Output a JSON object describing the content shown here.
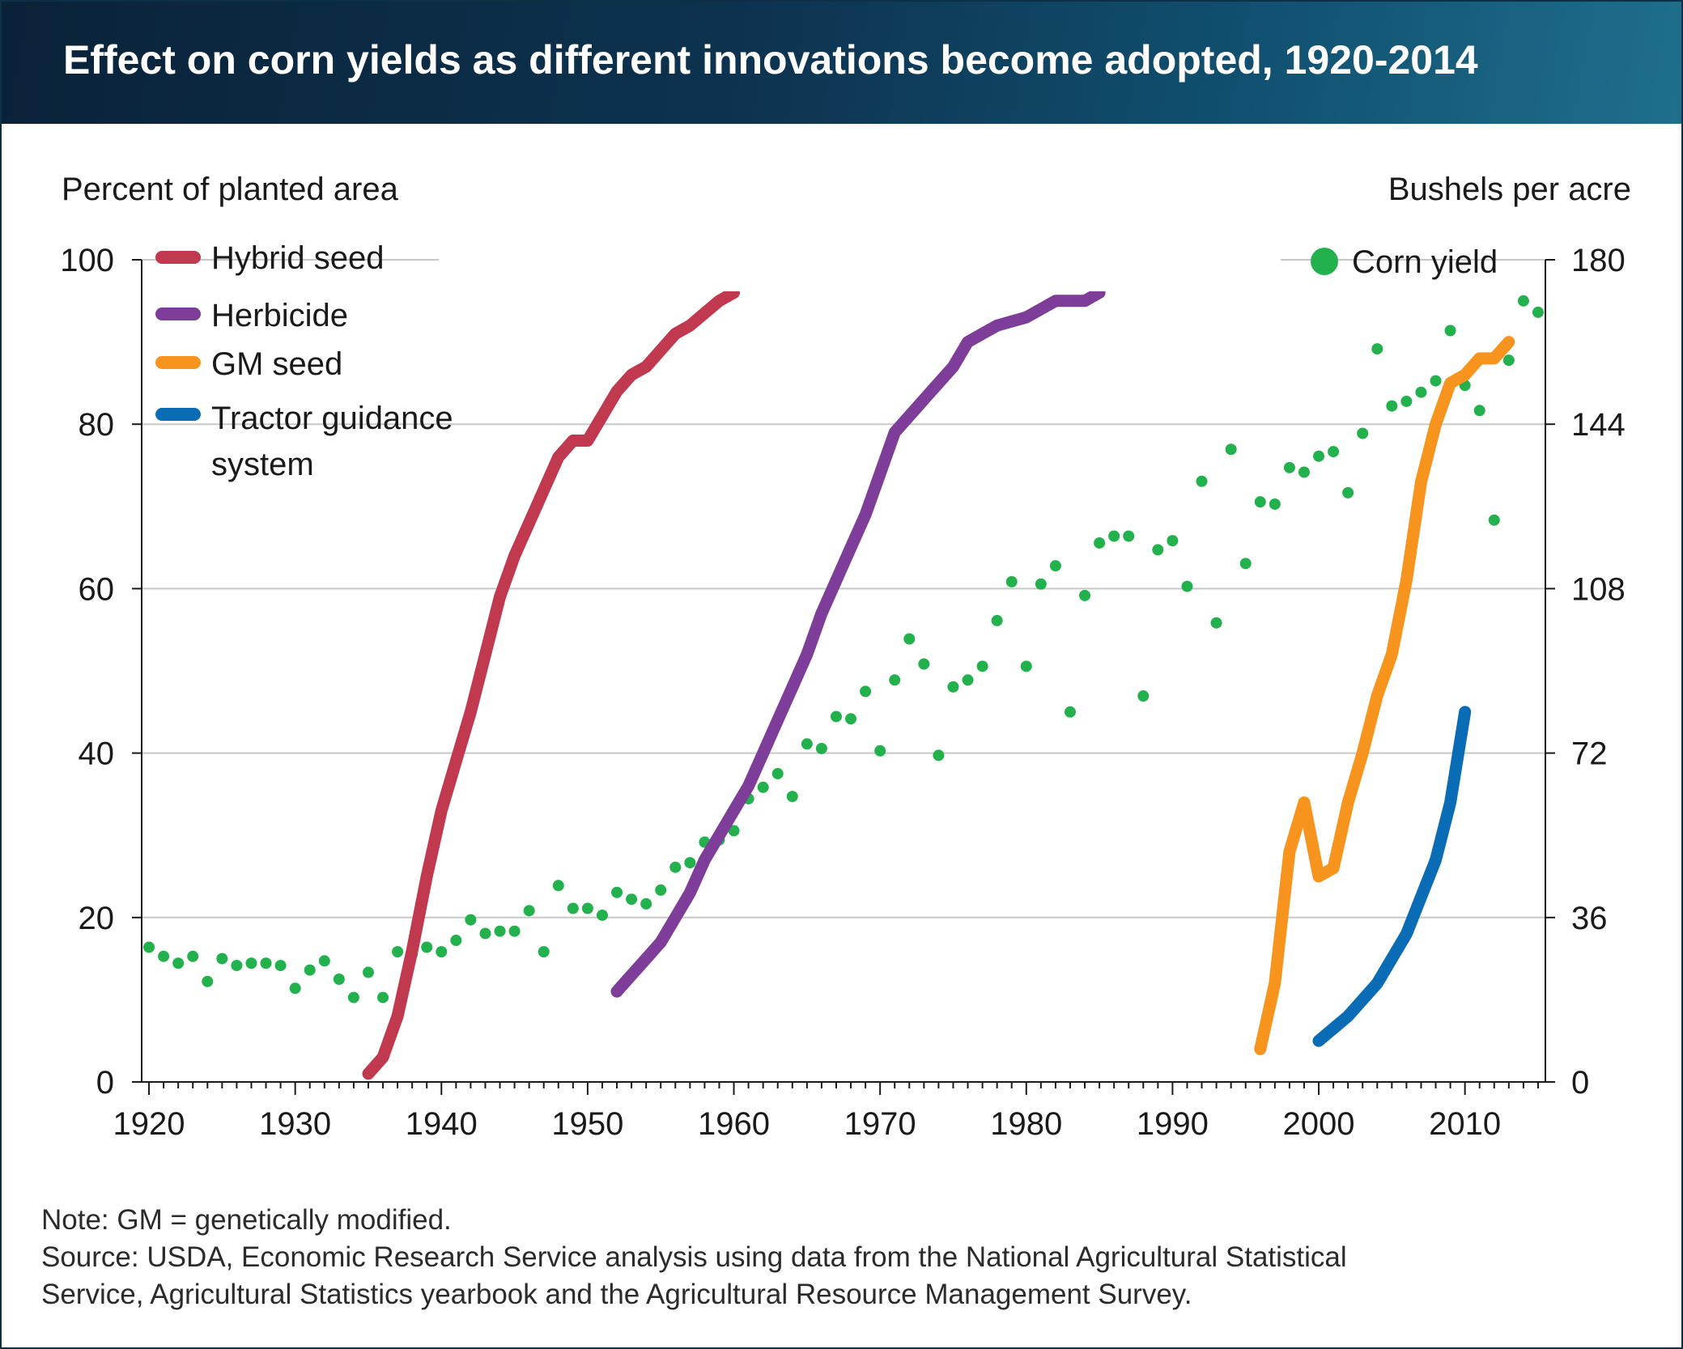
{
  "title": "Effect on corn yields as different innovations become adopted, 1920-2014",
  "note": "Note: GM = genetically modified.",
  "source_lines": [
    "Source: USDA, Economic Research Service analysis using data from the National Agricultural Statistical",
    "Service, Agricultural Statistics yearbook and the Agricultural Resource Management Survey."
  ],
  "chart_data": {
    "type": "line",
    "ylabel_left": "Percent of planted area",
    "ylabel_right": "Bushels per acre",
    "xlim": [
      1919.5,
      2015.5
    ],
    "ylim_left": [
      0,
      100
    ],
    "ylim_right": [
      0,
      180
    ],
    "x_ticks": [
      1920,
      1930,
      1940,
      1950,
      1960,
      1970,
      1980,
      1990,
      2000,
      2010
    ],
    "y_ticks_left": [
      0,
      20,
      40,
      60,
      80,
      100
    ],
    "y_ticks_right": [
      0,
      36,
      72,
      108,
      144,
      180
    ],
    "grid": "horizontal",
    "legend_placement": "top-left",
    "series": [
      {
        "name": "Hybrid seed",
        "axis": "left",
        "color": "#c0394e",
        "points": [
          [
            1935,
            1
          ],
          [
            1936,
            3
          ],
          [
            1937,
            8
          ],
          [
            1938,
            16
          ],
          [
            1939,
            25
          ],
          [
            1940,
            33
          ],
          [
            1941,
            39
          ],
          [
            1942,
            45
          ],
          [
            1943,
            52
          ],
          [
            1944,
            59
          ],
          [
            1945,
            64
          ],
          [
            1946,
            68
          ],
          [
            1947,
            72
          ],
          [
            1948,
            76
          ],
          [
            1949,
            78
          ],
          [
            1950,
            78
          ],
          [
            1951,
            81
          ],
          [
            1952,
            84
          ],
          [
            1953,
            86
          ],
          [
            1954,
            87
          ],
          [
            1955,
            89
          ],
          [
            1956,
            91
          ],
          [
            1957,
            92
          ],
          [
            1958,
            93.5
          ],
          [
            1959,
            95
          ],
          [
            1960,
            96
          ]
        ]
      },
      {
        "name": "Herbicide",
        "axis": "left",
        "color": "#7d3d99",
        "points": [
          [
            1952,
            11
          ],
          [
            1953,
            13
          ],
          [
            1954,
            15
          ],
          [
            1955,
            17
          ],
          [
            1956,
            20
          ],
          [
            1957,
            23
          ],
          [
            1958,
            27
          ],
          [
            1959,
            30
          ],
          [
            1960,
            33
          ],
          [
            1961,
            36
          ],
          [
            1962,
            40
          ],
          [
            1963,
            44
          ],
          [
            1964,
            48
          ],
          [
            1965,
            52
          ],
          [
            1966,
            57
          ],
          [
            1967,
            61
          ],
          [
            1968,
            65
          ],
          [
            1969,
            69
          ],
          [
            1970,
            74
          ],
          [
            1971,
            79
          ],
          [
            1972,
            81
          ],
          [
            1973,
            83
          ],
          [
            1974,
            85
          ],
          [
            1975,
            87
          ],
          [
            1976,
            90
          ],
          [
            1977,
            91
          ],
          [
            1978,
            92
          ],
          [
            1979,
            92.5
          ],
          [
            1980,
            93
          ],
          [
            1981,
            94
          ],
          [
            1982,
            95
          ],
          [
            1983,
            95
          ],
          [
            1984,
            95
          ],
          [
            1985,
            96
          ]
        ]
      },
      {
        "name": "GM seed",
        "axis": "left",
        "color": "#f7941d",
        "points": [
          [
            1996,
            4
          ],
          [
            1997,
            12
          ],
          [
            1998,
            28
          ],
          [
            1999,
            34
          ],
          [
            2000,
            25
          ],
          [
            2001,
            26
          ],
          [
            2002,
            34
          ],
          [
            2003,
            40
          ],
          [
            2004,
            47
          ],
          [
            2005,
            52
          ],
          [
            2006,
            61
          ],
          [
            2007,
            73
          ],
          [
            2008,
            80
          ],
          [
            2009,
            85
          ],
          [
            2010,
            86
          ],
          [
            2011,
            88
          ],
          [
            2012,
            88
          ],
          [
            2013,
            90
          ]
        ]
      },
      {
        "name": "Tractor guidance system",
        "axis": "left",
        "color": "#0a6cb5",
        "points": [
          [
            2000,
            5
          ],
          [
            2002,
            8
          ],
          [
            2004,
            12
          ],
          [
            2006,
            18
          ],
          [
            2008,
            27
          ],
          [
            2009,
            34
          ],
          [
            2010,
            45
          ]
        ]
      },
      {
        "name": "Corn yield",
        "axis": "right",
        "color": "#22b14c",
        "kind": "scatter",
        "points": [
          [
            1920,
            29.5
          ],
          [
            1921,
            27.5
          ],
          [
            1922,
            26
          ],
          [
            1923,
            27.5
          ],
          [
            1924,
            22
          ],
          [
            1925,
            27
          ],
          [
            1926,
            25.5
          ],
          [
            1927,
            26
          ],
          [
            1928,
            26
          ],
          [
            1929,
            25.5
          ],
          [
            1930,
            20.5
          ],
          [
            1931,
            24.5
          ],
          [
            1932,
            26.5
          ],
          [
            1933,
            22.5
          ],
          [
            1934,
            18.5
          ],
          [
            1935,
            24
          ],
          [
            1936,
            18.5
          ],
          [
            1937,
            28.5
          ],
          [
            1938,
            28
          ],
          [
            1939,
            29.5
          ],
          [
            1940,
            28.5
          ],
          [
            1941,
            31
          ],
          [
            1942,
            35.5
          ],
          [
            1943,
            32.5
          ],
          [
            1944,
            33
          ],
          [
            1945,
            33
          ],
          [
            1946,
            37.5
          ],
          [
            1947,
            28.5
          ],
          [
            1948,
            43
          ],
          [
            1949,
            38
          ],
          [
            1950,
            38
          ],
          [
            1951,
            36.5
          ],
          [
            1952,
            41.5
          ],
          [
            1953,
            40
          ],
          [
            1954,
            39
          ],
          [
            1955,
            42
          ],
          [
            1956,
            47
          ],
          [
            1957,
            48
          ],
          [
            1958,
            52.5
          ],
          [
            1959,
            53
          ],
          [
            1960,
            55
          ],
          [
            1961,
            62
          ],
          [
            1962,
            64.5
          ],
          [
            1963,
            67.5
          ],
          [
            1964,
            62.5
          ],
          [
            1965,
            74
          ],
          [
            1966,
            73
          ],
          [
            1967,
            80
          ],
          [
            1968,
            79.5
          ],
          [
            1969,
            85.5
          ],
          [
            1970,
            72.5
          ],
          [
            1971,
            88
          ],
          [
            1972,
            97
          ],
          [
            1973,
            91.5
          ],
          [
            1974,
            71.5
          ],
          [
            1975,
            86.5
          ],
          [
            1976,
            88
          ],
          [
            1977,
            91
          ],
          [
            1978,
            101
          ],
          [
            1979,
            109.5
          ],
          [
            1980,
            91
          ],
          [
            1981,
            109
          ],
          [
            1982,
            113
          ],
          [
            1983,
            81
          ],
          [
            1984,
            106.5
          ],
          [
            1985,
            118
          ],
          [
            1986,
            119.5
          ],
          [
            1987,
            119.5
          ],
          [
            1988,
            84.5
          ],
          [
            1989,
            116.5
          ],
          [
            1990,
            118.5
          ],
          [
            1991,
            108.5
          ],
          [
            1992,
            131.5
          ],
          [
            1993,
            100.5
          ],
          [
            1994,
            138.5
          ],
          [
            1995,
            113.5
          ],
          [
            1996,
            127
          ],
          [
            1997,
            126.5
          ],
          [
            1998,
            134.5
          ],
          [
            1999,
            133.5
          ],
          [
            2000,
            137
          ],
          [
            2001,
            138
          ],
          [
            2002,
            129
          ],
          [
            2003,
            142
          ],
          [
            2004,
            160.5
          ],
          [
            2005,
            148
          ],
          [
            2006,
            149
          ],
          [
            2007,
            151
          ],
          [
            2008,
            153.5
          ],
          [
            2009,
            164.5
          ],
          [
            2010,
            152.5
          ],
          [
            2011,
            147
          ],
          [
            2012,
            123
          ],
          [
            2013,
            158
          ],
          [
            2014,
            171
          ],
          [
            2015,
            168.5
          ]
        ]
      }
    ]
  }
}
